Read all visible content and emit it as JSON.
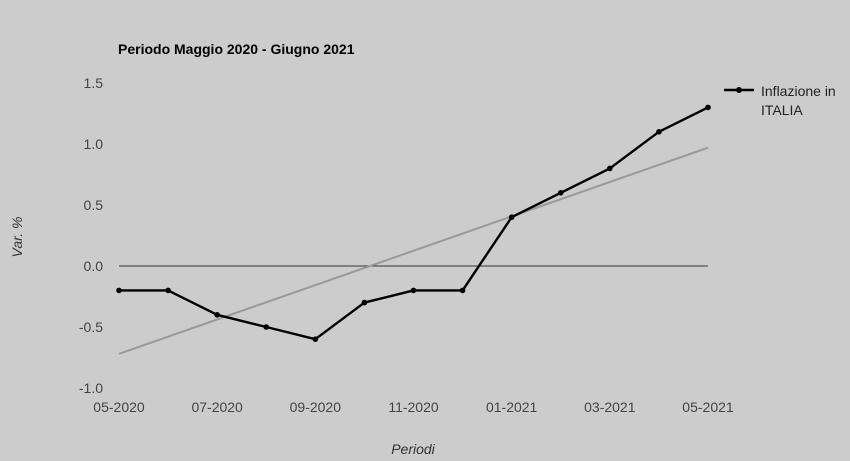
{
  "chart_data": {
    "type": "line",
    "title": "Periodo Maggio 2020 - Giugno 2021",
    "xlabel": "Periodi",
    "ylabel": "Var. %",
    "ylim": [
      -1.0,
      1.5
    ],
    "yticks": [
      "1.5",
      "1.0",
      "0.5",
      "0.0",
      "-0.5",
      "-1.0"
    ],
    "ytick_values": [
      1.5,
      1.0,
      0.5,
      0.0,
      -0.5,
      -1.0
    ],
    "xtick_labels": [
      "05-2020",
      "07-2020",
      "09-2020",
      "11-2020",
      "01-2021",
      "03-2021",
      "05-2021"
    ],
    "xtick_indices": [
      0,
      2,
      4,
      6,
      8,
      10,
      12
    ],
    "x": [
      "05-2020",
      "06-2020",
      "07-2020",
      "08-2020",
      "09-2020",
      "10-2020",
      "11-2020",
      "12-2020",
      "01-2021",
      "02-2021",
      "03-2021",
      "04-2021",
      "05-2021"
    ],
    "series": [
      {
        "name": "Inflazione in ITALIA",
        "legend_lines": [
          "Inflazione in",
          "ITALIA"
        ],
        "color": "#000000",
        "values": [
          -0.2,
          -0.2,
          -0.4,
          -0.5,
          -0.6,
          -0.3,
          -0.2,
          -0.2,
          0.4,
          0.6,
          0.8,
          1.1,
          1.3
        ]
      }
    ],
    "trendline": {
      "color": "#999999",
      "start": -0.72,
      "end": 0.97
    },
    "zero_line": 0.0,
    "grid": false,
    "legend_position": "right-top"
  }
}
